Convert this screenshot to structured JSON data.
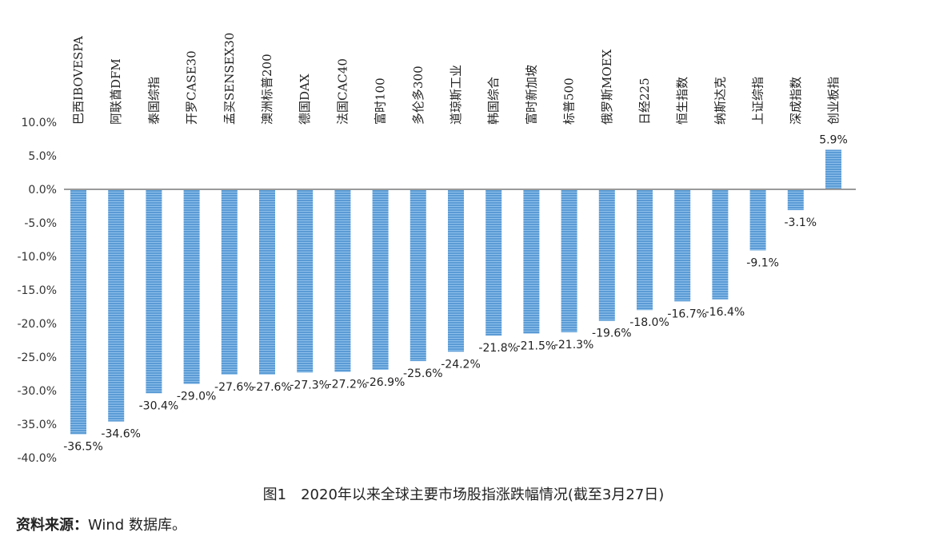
{
  "chart_data": {
    "type": "bar",
    "title": "",
    "xlabel": "",
    "ylabel": "",
    "ylim": [
      -40,
      10
    ],
    "yticks": [
      10,
      5,
      0,
      -5,
      -10,
      -15,
      -20,
      -25,
      -30,
      -35,
      -40
    ],
    "ytick_labels": [
      "10.0%",
      "5.0%",
      "0.0%",
      "-5.0%",
      "-10.0%",
      "-15.0%",
      "-20.0%",
      "-25.0%",
      "-30.0%",
      "-35.0%",
      "-40.0%"
    ],
    "categories": [
      "巴西IBOVESPA",
      "阿联酋DFM",
      "泰国综指",
      "开罗CASE30",
      "孟买SENSEX30",
      "澳洲标普200",
      "德国DAX",
      "法国CAC40",
      "富时100",
      "多伦多300",
      "道琼斯工业",
      "韩国综合",
      "富时新加坡",
      "标普500",
      "俄罗斯MOEX",
      "日经225",
      "恒生指数",
      "纳斯达克",
      "上证综指",
      "深成指数",
      "创业板指"
    ],
    "values": [
      -36.5,
      -34.6,
      -30.4,
      -29.0,
      -27.6,
      -27.6,
      -27.3,
      -27.2,
      -26.9,
      -25.6,
      -24.2,
      -21.8,
      -21.5,
      -21.3,
      -19.6,
      -18.0,
      -16.7,
      -16.4,
      -9.1,
      -3.1,
      5.9
    ],
    "data_labels": [
      "-36.5%",
      "-34.6%",
      "-30.4%",
      "-29.0%",
      "-27.6%",
      "-27.6%",
      "-27.3%",
      "-27.2%",
      "-26.9%",
      "-25.6%",
      "-24.2%",
      "-21.8%",
      "-21.5%",
      "-21.3%",
      "-19.6%",
      "-18.0%",
      "-16.7%",
      "-16.4%",
      "-9.1%",
      "-3.1%",
      "5.9%"
    ],
    "bar_color": "#5b9bd5",
    "grid": false,
    "legend": "none"
  },
  "caption": "图1　2020年以来全球主要市场股指涨跌幅情况(截至3月27日)",
  "source": {
    "prefix": "资料来源：",
    "text": "Wind 数据库。"
  }
}
